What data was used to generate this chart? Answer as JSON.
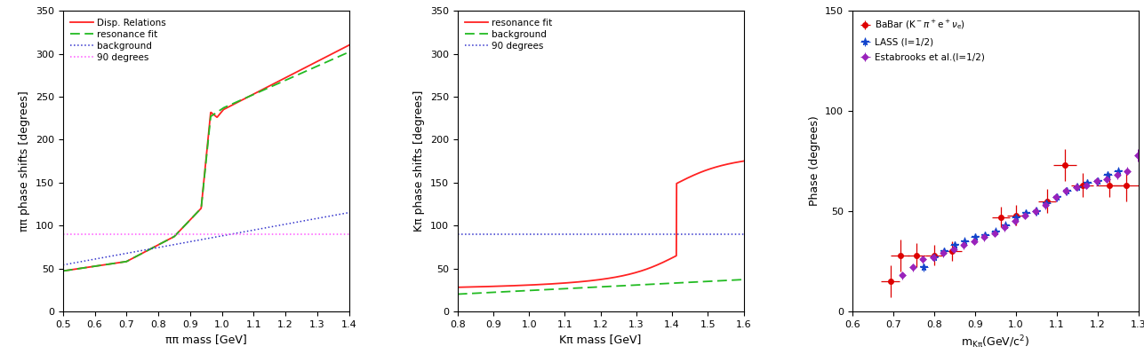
{
  "panel1": {
    "xlabel": "ππ mass [GeV]",
    "ylabel": "ππ phase shifts [degrees]",
    "xlim": [
      0.5,
      1.4
    ],
    "ylim": [
      0,
      350
    ],
    "xticks": [
      0.5,
      0.6,
      0.7,
      0.8,
      0.9,
      1.0,
      1.1,
      1.2,
      1.3,
      1.4
    ],
    "yticks": [
      0,
      50,
      100,
      150,
      200,
      250,
      300,
      350
    ],
    "legend": [
      "Disp. Relations",
      "resonance fit",
      "background",
      "90 degrees"
    ],
    "line_colors": [
      "#ff2222",
      "#22bb22",
      "#3333cc",
      "#ff55ff"
    ],
    "line_styles": [
      "-",
      "--",
      ":",
      ":"
    ],
    "hline_90": 90
  },
  "panel2": {
    "xlabel": "Kπ mass [GeV]",
    "ylabel": "Kπ phase shifts [degrees]",
    "xlim": [
      0.8,
      1.6
    ],
    "ylim": [
      0,
      350
    ],
    "xticks": [
      0.8,
      0.9,
      1.0,
      1.1,
      1.2,
      1.3,
      1.4,
      1.5,
      1.6
    ],
    "yticks": [
      0,
      50,
      100,
      150,
      200,
      250,
      300,
      350
    ],
    "legend": [
      "resonance fit",
      "background",
      "90 degrees"
    ],
    "line_colors": [
      "#ff2222",
      "#22bb22",
      "#3333cc"
    ],
    "line_styles": [
      "-",
      "--",
      ":"
    ],
    "hline_90": 90
  },
  "panel3": {
    "xlabel": "m_{Kπ}(GeV/c²)",
    "ylabel": "Phase (degrees)",
    "xlim": [
      0.6,
      1.3
    ],
    "ylim": [
      0,
      150
    ],
    "xticks": [
      0.6,
      0.7,
      0.8,
      0.9,
      1.0,
      1.1,
      1.2,
      1.3
    ],
    "yticks": [
      0,
      50,
      100,
      150
    ],
    "babar_x": [
      0.693,
      0.717,
      0.757,
      0.8,
      0.845,
      0.963,
      1.0,
      1.077,
      1.12,
      1.163,
      1.23,
      1.27
    ],
    "babar_y": [
      15,
      28,
      28,
      28,
      30,
      47,
      48,
      55,
      73,
      63,
      63,
      63
    ],
    "babar_xerr": [
      0.022,
      0.022,
      0.022,
      0.022,
      0.022,
      0.022,
      0.022,
      0.022,
      0.028,
      0.028,
      0.033,
      0.033
    ],
    "babar_yerr": [
      8,
      8,
      6,
      5,
      5,
      5,
      5,
      6,
      8,
      6,
      6,
      8
    ],
    "lass_x": [
      0.775,
      0.8,
      0.825,
      0.85,
      0.875,
      0.9,
      0.925,
      0.95,
      0.975,
      1.0,
      1.025,
      1.05,
      1.075,
      1.1,
      1.125,
      1.15,
      1.175,
      1.2,
      1.225,
      1.25
    ],
    "lass_y": [
      22,
      27,
      30,
      33,
      35,
      37,
      38,
      40,
      43,
      47,
      49,
      50,
      54,
      57,
      60,
      62,
      64,
      65,
      68,
      70
    ],
    "lass_xerr": [
      0.01,
      0.01,
      0.01,
      0.01,
      0.01,
      0.01,
      0.01,
      0.01,
      0.01,
      0.01,
      0.01,
      0.01,
      0.01,
      0.01,
      0.01,
      0.01,
      0.01,
      0.01,
      0.01,
      0.01
    ],
    "lass_yerr": [
      2,
      2,
      2,
      2,
      2,
      2,
      2,
      2,
      2,
      2,
      2,
      2,
      2,
      2,
      2,
      2,
      2,
      2,
      2,
      2
    ],
    "esta_x": [
      0.723,
      0.748,
      0.773,
      0.798,
      0.823,
      0.848,
      0.873,
      0.898,
      0.923,
      0.948,
      0.973,
      0.998,
      1.023,
      1.048,
      1.073,
      1.098,
      1.123,
      1.148,
      1.173,
      1.198,
      1.223,
      1.248,
      1.273,
      1.298
    ],
    "esta_y": [
      18,
      22,
      26,
      27,
      29,
      31,
      33,
      35,
      37,
      39,
      42,
      45,
      48,
      50,
      53,
      57,
      60,
      62,
      63,
      65,
      66,
      68,
      70,
      78
    ],
    "esta_xerr": [
      0.008,
      0.008,
      0.008,
      0.008,
      0.008,
      0.008,
      0.008,
      0.008,
      0.008,
      0.008,
      0.008,
      0.008,
      0.008,
      0.008,
      0.008,
      0.008,
      0.008,
      0.008,
      0.008,
      0.008,
      0.008,
      0.008,
      0.008,
      0.008
    ],
    "esta_yerr": [
      2,
      2,
      2,
      2,
      2,
      2,
      2,
      2,
      2,
      2,
      2,
      2,
      2,
      2,
      2,
      2,
      2,
      2,
      2,
      2,
      2,
      2,
      2,
      3
    ]
  },
  "background_color": "#ffffff",
  "font_size": 9
}
